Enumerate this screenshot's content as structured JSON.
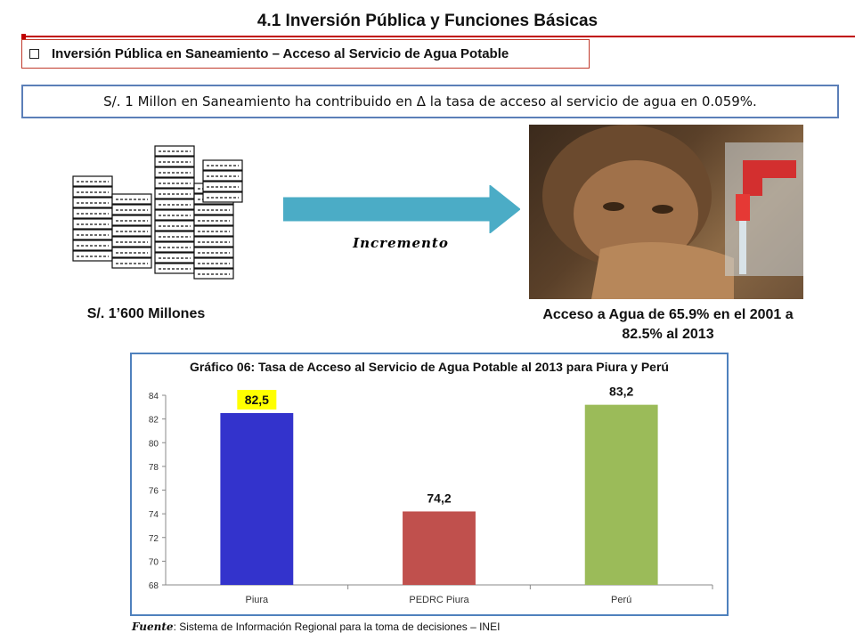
{
  "header": {
    "title": "4.1 Inversión Pública y Funciones Básicas",
    "subheading": "Inversión Pública en Saneamiento – Acceso al Servicio de Agua Potable"
  },
  "statement": "S/. 1 Millon  en Saneamiento ha contribuido en Δ la tasa de acceso al servicio de agua en 0.059%.",
  "infographic": {
    "money_label": "S/. 1’600 Millones",
    "arrow_label": "Incremento",
    "water_label_line1": "Acceso a Agua de 65.9% en el 2001 a",
    "water_label_line2": "82.5% al 2013"
  },
  "colors": {
    "accent_red": "#c00000",
    "frame_blue": "#4f81bd",
    "arrow_teal": "#4bacc6",
    "highlight_yellow": "#ffff00"
  },
  "chart_data": {
    "type": "bar",
    "title": "Gráfico 06: Tasa de Acceso al Servicio de Agua Potable al 2013 para Piura y Perú",
    "categories": [
      "Piura",
      "PEDRC Piura",
      "Perú"
    ],
    "values": [
      82.5,
      74.2,
      83.2
    ],
    "data_labels": [
      "82,5",
      "74,2",
      "83,2"
    ],
    "bar_colors": [
      "#3333cc",
      "#c0504d",
      "#9bbb59"
    ],
    "highlighted_label_index": 0,
    "ylim": [
      68,
      84
    ],
    "yticks": [
      "68",
      "70",
      "72",
      "74",
      "76",
      "78",
      "80",
      "82",
      "84"
    ],
    "xlabel": "",
    "ylabel": "",
    "grid": false,
    "legend": "none"
  },
  "source": {
    "label": "Fuente",
    "text": ": Sistema de Información Regional para la toma de decisiones – INEI"
  }
}
